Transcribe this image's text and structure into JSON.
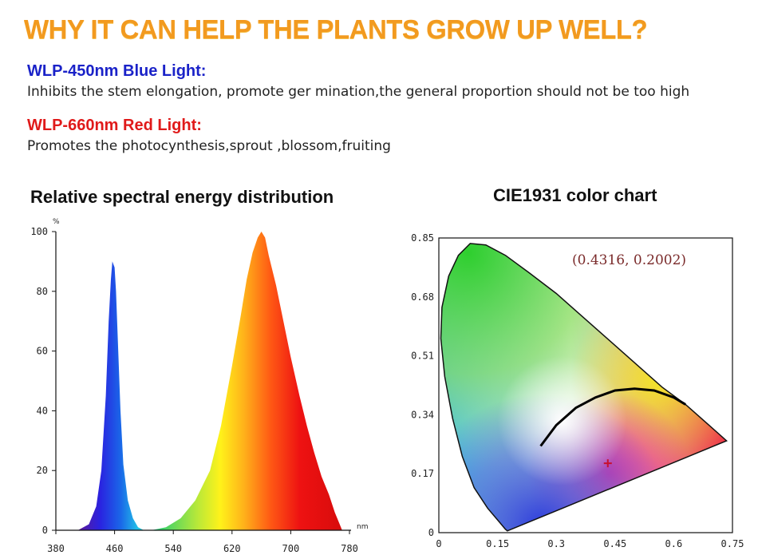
{
  "header": {
    "title": "WHY IT CAN HELP THE PLANTS GROW UP WELL?",
    "blue_heading": "WLP-450nm Blue Light:",
    "blue_desc": "Inhibits the stem elongation, promote ger mination,the general proportion should not be too high",
    "red_heading": "WLP-660nm Red Light:",
    "red_desc": "Promotes the photocynthesis,sprout ,blossom,fruiting"
  },
  "chart_data": [
    {
      "type": "area",
      "title": "Relative spectral energy distribution",
      "xlabel": "nm",
      "ylabel": "%",
      "xlim": [
        380,
        780
      ],
      "ylim": [
        0,
        100
      ],
      "x_ticks": [
        "380",
        "460",
        "540",
        "620",
        "700",
        "780"
      ],
      "y_ticks": [
        "0",
        "20",
        "40",
        "60",
        "80",
        "100"
      ],
      "series": [
        {
          "x": [
            410,
            425,
            435,
            442,
            448,
            452,
            455,
            457,
            460,
            462,
            465,
            468,
            472,
            478,
            485,
            492,
            500
          ],
          "y": [
            0,
            2,
            8,
            20,
            45,
            70,
            84,
            90,
            88,
            80,
            60,
            40,
            22,
            10,
            4,
            1,
            0
          ]
        },
        {
          "x": [
            510,
            530,
            550,
            570,
            590,
            605,
            620,
            632,
            640,
            648,
            655,
            660,
            665,
            670,
            680,
            690,
            700,
            712,
            722,
            732,
            742,
            752,
            760,
            765,
            770
          ],
          "y": [
            0,
            1,
            4,
            10,
            20,
            35,
            55,
            72,
            84,
            93,
            98,
            100,
            98,
            92,
            82,
            70,
            58,
            45,
            35,
            26,
            18,
            12,
            6,
            3,
            0
          ]
        }
      ]
    },
    {
      "type": "scatter",
      "title": "CIE1931 color chart",
      "xlim": [
        0,
        0.75
      ],
      "ylim": [
        0,
        0.85
      ],
      "x_ticks": [
        "0",
        "0.15",
        "0.3",
        "0.45",
        "0.6",
        "0.75"
      ],
      "y_ticks": [
        "0",
        "0.17",
        "0.34",
        "0.51",
        "0.68",
        "0.85"
      ],
      "annotation": "(0.4316,  0.2002)",
      "point": {
        "x": 0.4316,
        "y": 0.2002
      },
      "locus": [
        {
          "x": 0.175,
          "y": 0.005
        },
        {
          "x": 0.17,
          "y": 0.01
        },
        {
          "x": 0.155,
          "y": 0.03
        },
        {
          "x": 0.125,
          "y": 0.07
        },
        {
          "x": 0.09,
          "y": 0.13
        },
        {
          "x": 0.06,
          "y": 0.22
        },
        {
          "x": 0.035,
          "y": 0.33
        },
        {
          "x": 0.015,
          "y": 0.45
        },
        {
          "x": 0.005,
          "y": 0.56
        },
        {
          "x": 0.008,
          "y": 0.65
        },
        {
          "x": 0.025,
          "y": 0.74
        },
        {
          "x": 0.05,
          "y": 0.8
        },
        {
          "x": 0.08,
          "y": 0.834
        },
        {
          "x": 0.12,
          "y": 0.83
        },
        {
          "x": 0.17,
          "y": 0.8
        },
        {
          "x": 0.23,
          "y": 0.75
        },
        {
          "x": 0.3,
          "y": 0.69
        },
        {
          "x": 0.37,
          "y": 0.62
        },
        {
          "x": 0.44,
          "y": 0.55
        },
        {
          "x": 0.51,
          "y": 0.48
        },
        {
          "x": 0.57,
          "y": 0.42
        },
        {
          "x": 0.63,
          "y": 0.37
        },
        {
          "x": 0.69,
          "y": 0.31
        },
        {
          "x": 0.735,
          "y": 0.265
        }
      ],
      "planckian": [
        {
          "x": 0.26,
          "y": 0.25
        },
        {
          "x": 0.3,
          "y": 0.31
        },
        {
          "x": 0.35,
          "y": 0.36
        },
        {
          "x": 0.4,
          "y": 0.39
        },
        {
          "x": 0.45,
          "y": 0.41
        },
        {
          "x": 0.5,
          "y": 0.415
        },
        {
          "x": 0.55,
          "y": 0.41
        },
        {
          "x": 0.6,
          "y": 0.39
        },
        {
          "x": 0.63,
          "y": 0.37
        }
      ]
    }
  ]
}
